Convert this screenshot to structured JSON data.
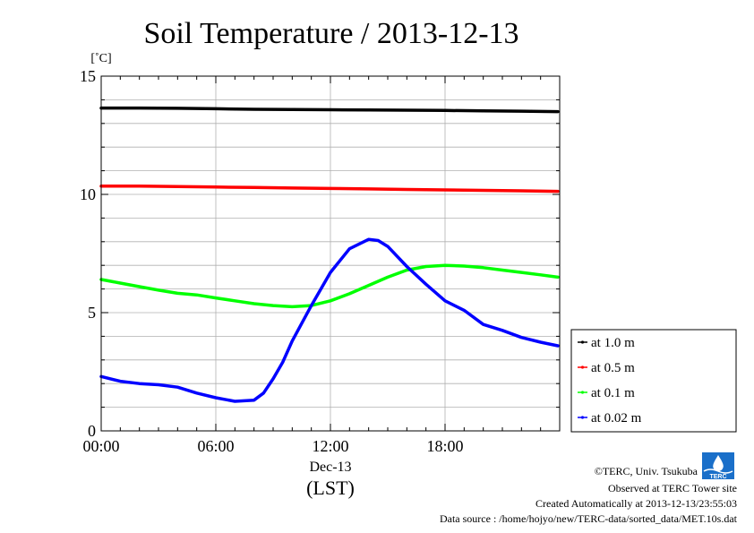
{
  "chart_data": {
    "type": "line",
    "title": "Soil Temperature / 2013-12-13",
    "ylabel": "[˚C]",
    "xlabel": "(LST)",
    "date_label": "Dec-13",
    "xlim": [
      0,
      24
    ],
    "ylim": [
      0,
      15
    ],
    "x_ticks": [
      {
        "value": 0,
        "label": "00:00"
      },
      {
        "value": 6,
        "label": "06:00"
      },
      {
        "value": 12,
        "label": "12:00"
      },
      {
        "value": 18,
        "label": "18:00"
      }
    ],
    "y_ticks": [
      {
        "value": 0,
        "label": "0"
      },
      {
        "value": 5,
        "label": "5"
      },
      {
        "value": 10,
        "label": "10"
      },
      {
        "value": 15,
        "label": "15"
      }
    ],
    "grid": true,
    "legend_position": "right-bottom",
    "series": [
      {
        "name": "at 1.0 m",
        "color": "#000000",
        "x": [
          0,
          2,
          4,
          6,
          8,
          10,
          12,
          14,
          16,
          18,
          20,
          22,
          23.9
        ],
        "y": [
          13.65,
          13.65,
          13.64,
          13.62,
          13.6,
          13.59,
          13.58,
          13.57,
          13.56,
          13.55,
          13.53,
          13.52,
          13.5
        ]
      },
      {
        "name": "at 0.5 m",
        "color": "#ff0000",
        "x": [
          0,
          2,
          4,
          6,
          8,
          10,
          12,
          14,
          16,
          18,
          20,
          22,
          23.9
        ],
        "y": [
          10.35,
          10.35,
          10.33,
          10.31,
          10.29,
          10.27,
          10.25,
          10.23,
          10.21,
          10.19,
          10.17,
          10.15,
          10.13
        ]
      },
      {
        "name": "at 0.1 m",
        "color": "#00ff00",
        "x": [
          0,
          1,
          2,
          3,
          4,
          5,
          6,
          7,
          8,
          9,
          10,
          11,
          12,
          13,
          14,
          15,
          16,
          17,
          18,
          19,
          20,
          21,
          22,
          23,
          23.9
        ],
        "y": [
          6.4,
          6.25,
          6.1,
          5.95,
          5.82,
          5.75,
          5.62,
          5.5,
          5.38,
          5.3,
          5.25,
          5.3,
          5.5,
          5.8,
          6.15,
          6.5,
          6.8,
          6.95,
          7.0,
          6.97,
          6.9,
          6.8,
          6.7,
          6.6,
          6.5
        ]
      },
      {
        "name": "at 0.02 m",
        "color": "#0000ff",
        "x": [
          0,
          1,
          2,
          3,
          4,
          5,
          6,
          7,
          8,
          8.5,
          9,
          9.5,
          10,
          11,
          12,
          13,
          14,
          14.5,
          15,
          16,
          17,
          18,
          19,
          20,
          21,
          22,
          23,
          23.9
        ],
        "y": [
          2.3,
          2.1,
          2.0,
          1.95,
          1.85,
          1.6,
          1.4,
          1.25,
          1.3,
          1.6,
          2.2,
          2.9,
          3.8,
          5.3,
          6.7,
          7.7,
          8.1,
          8.05,
          7.8,
          6.95,
          6.2,
          5.5,
          5.1,
          4.5,
          4.25,
          3.95,
          3.75,
          3.6
        ]
      }
    ]
  },
  "footer": {
    "copyright": "©TERC, Univ. Tsukuba",
    "observed": "Observed at TERC Tower site",
    "created": "Created Automatically at 2013-12-13/23:55:03",
    "source": "Data source : /home/hojyo/new/TERC-data/sorted_data/MET.10s.dat"
  },
  "logo": {
    "text": "TERC",
    "color": "#1a6fc9"
  }
}
